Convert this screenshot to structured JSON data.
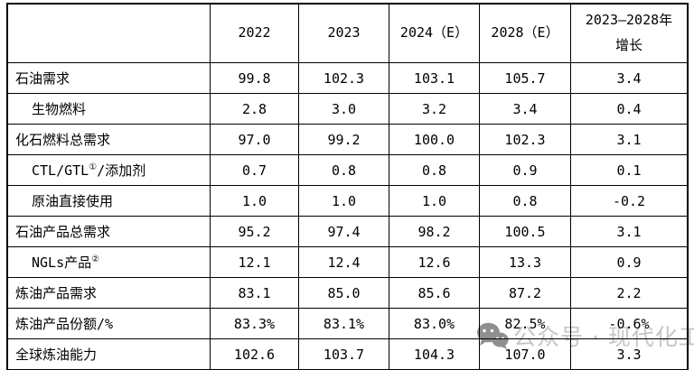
{
  "table": {
    "headers": [
      "",
      "2022",
      "2023",
      "2024（E）",
      "2028（E）",
      "2023—2028年\n增长"
    ],
    "rows": [
      {
        "indent": false,
        "label_parts": [
          {
            "text": "石油需求"
          }
        ],
        "values": [
          "99.8",
          "102.3",
          "103.1",
          "105.7",
          "3.4"
        ]
      },
      {
        "indent": true,
        "label_parts": [
          {
            "text": "生物燃料"
          }
        ],
        "values": [
          "2.8",
          "3.0",
          "3.2",
          "3.4",
          "0.4"
        ]
      },
      {
        "indent": false,
        "label_parts": [
          {
            "text": "化石燃料总需求"
          }
        ],
        "values": [
          "97.0",
          "99.2",
          "100.0",
          "102.3",
          "3.1"
        ]
      },
      {
        "indent": true,
        "label_parts": [
          {
            "text": "CTL/GTL"
          },
          {
            "text": "①",
            "sup": true
          },
          {
            "text": "/添加剂"
          }
        ],
        "values": [
          "0.7",
          "0.8",
          "0.8",
          "0.9",
          "0.1"
        ]
      },
      {
        "indent": true,
        "label_parts": [
          {
            "text": "原油直接使用"
          }
        ],
        "values": [
          "1.0",
          "1.0",
          "1.0",
          "0.8",
          "-0.2"
        ]
      },
      {
        "indent": false,
        "label_parts": [
          {
            "text": "石油产品总需求"
          }
        ],
        "values": [
          "95.2",
          "97.4",
          "98.2",
          "100.5",
          "3.1"
        ]
      },
      {
        "indent": true,
        "label_parts": [
          {
            "text": "NGLs产品"
          },
          {
            "text": "②",
            "sup": true
          }
        ],
        "values": [
          "12.1",
          "12.4",
          "12.6",
          "13.3",
          "0.9"
        ]
      },
      {
        "indent": false,
        "label_parts": [
          {
            "text": "炼油产品需求"
          }
        ],
        "values": [
          "83.1",
          "85.0",
          "85.6",
          "87.2",
          "2.2"
        ]
      },
      {
        "indent": false,
        "label_parts": [
          {
            "text": "炼油产品份额/%"
          }
        ],
        "values": [
          "83.3%",
          "83.1%",
          "83.0%",
          "82.5%",
          "-0.6%"
        ]
      },
      {
        "indent": false,
        "label_parts": [
          {
            "text": "全球炼油能力"
          }
        ],
        "values": [
          "102.6",
          "103.7",
          "104.3",
          "107.0",
          "3.3"
        ]
      }
    ]
  },
  "watermark": {
    "text": "公众号 · 现代化工",
    "text_color": "#c6c6c6",
    "icon_color": "#8f8f8f"
  },
  "colors": {
    "border": "#000000",
    "text": "#000000",
    "background": "#ffffff"
  }
}
